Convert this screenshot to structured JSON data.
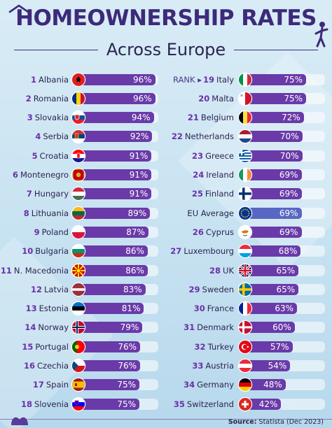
{
  "title": "HOMEOWNERSHIP RATES",
  "subtitle": "Across Europe",
  "rank_marker": "RANK ▸",
  "footer": {
    "source_label": "Source:",
    "source_text": "Statista (Dec 2023)"
  },
  "colors": {
    "bar": "#6a3aa8",
    "eu_bar": "#5867c2",
    "title": "#3d2a7a",
    "rank": "#6b2fa8"
  },
  "chart_data": {
    "type": "bar",
    "title": "HOMEOWNERSHIP RATES",
    "subtitle": "Across Europe",
    "unit": "%",
    "xlim": [
      0,
      100
    ],
    "rows": [
      {
        "rank": "1",
        "country": "Albania",
        "value": 96,
        "label": "96%",
        "flag": "albania-flag-icon"
      },
      {
        "rank": "2",
        "country": "Romania",
        "value": 96,
        "label": "96%",
        "flag": "romania-flag-icon"
      },
      {
        "rank": "3",
        "country": "Slovakia",
        "value": 94,
        "label": "94%",
        "flag": "slovakia-flag-icon"
      },
      {
        "rank": "4",
        "country": "Serbia",
        "value": 92,
        "label": "92%",
        "flag": "serbia-flag-icon"
      },
      {
        "rank": "5",
        "country": "Croatia",
        "value": 91,
        "label": "91%",
        "flag": "croatia-flag-icon"
      },
      {
        "rank": "6",
        "country": "Montenegro",
        "value": 91,
        "label": "91%",
        "flag": "montenegro-flag-icon"
      },
      {
        "rank": "7",
        "country": "Hungary",
        "value": 91,
        "label": "91%",
        "flag": "hungary-flag-icon"
      },
      {
        "rank": "8",
        "country": "Lithuania",
        "value": 89,
        "label": "89%",
        "flag": "lithuania-flag-icon"
      },
      {
        "rank": "9",
        "country": "Poland",
        "value": 87,
        "label": "87%",
        "flag": "poland-flag-icon"
      },
      {
        "rank": "10",
        "country": "Bulgaria",
        "value": 86,
        "label": "86%",
        "flag": "bulgaria-flag-icon"
      },
      {
        "rank": "11",
        "country": "N. Macedonia",
        "value": 86,
        "label": "86%",
        "flag": "north-macedonia-flag-icon"
      },
      {
        "rank": "12",
        "country": "Latvia",
        "value": 83,
        "label": "83%",
        "flag": "latvia-flag-icon"
      },
      {
        "rank": "13",
        "country": "Estonia",
        "value": 81,
        "label": "81%",
        "flag": "estonia-flag-icon"
      },
      {
        "rank": "14",
        "country": "Norway",
        "value": 79,
        "label": "79%",
        "flag": "norway-flag-icon"
      },
      {
        "rank": "15",
        "country": "Portugal",
        "value": 76,
        "label": "76%",
        "flag": "portugal-flag-icon"
      },
      {
        "rank": "16",
        "country": "Czechia",
        "value": 76,
        "label": "76%",
        "flag": "czechia-flag-icon"
      },
      {
        "rank": "17",
        "country": "Spain",
        "value": 75,
        "label": "75%",
        "flag": "spain-flag-icon"
      },
      {
        "rank": "18",
        "country": "Slovenia",
        "value": 75,
        "label": "75%",
        "flag": "slovenia-flag-icon"
      },
      {
        "rank": "19",
        "country": "Italy",
        "value": 75,
        "label": "75%",
        "flag": "italy-flag-icon"
      },
      {
        "rank": "20",
        "country": "Malta",
        "value": 75,
        "label": "75%",
        "flag": "malta-flag-icon"
      },
      {
        "rank": "21",
        "country": "Belgium",
        "value": 72,
        "label": "72%",
        "flag": "belgium-flag-icon"
      },
      {
        "rank": "22",
        "country": "Netherlands",
        "value": 70,
        "label": "70%",
        "flag": "netherlands-flag-icon"
      },
      {
        "rank": "23",
        "country": "Greece",
        "value": 70,
        "label": "70%",
        "flag": "greece-flag-icon"
      },
      {
        "rank": "24",
        "country": "Ireland",
        "value": 69,
        "label": "69%",
        "flag": "ireland-flag-icon"
      },
      {
        "rank": "25",
        "country": "Finland",
        "value": 69,
        "label": "69%",
        "flag": "finland-flag-icon"
      },
      {
        "rank": "",
        "country": "EU Average",
        "value": 69,
        "label": "69%",
        "flag": "eu-flag-icon",
        "highlight": true
      },
      {
        "rank": "26",
        "country": "Cyprus",
        "value": 69,
        "label": "69%",
        "flag": "cyprus-flag-icon"
      },
      {
        "rank": "27",
        "country": "Luxembourg",
        "value": 68,
        "label": "68%",
        "flag": "luxembourg-flag-icon"
      },
      {
        "rank": "28",
        "country": "UK",
        "value": 65,
        "label": "65%",
        "flag": "uk-flag-icon"
      },
      {
        "rank": "29",
        "country": "Sweden",
        "value": 65,
        "label": "65%",
        "flag": "sweden-flag-icon"
      },
      {
        "rank": "30",
        "country": "France",
        "value": 63,
        "label": "63%",
        "flag": "france-flag-icon"
      },
      {
        "rank": "31",
        "country": "Denmark",
        "value": 60,
        "label": "60%",
        "flag": "denmark-flag-icon"
      },
      {
        "rank": "32",
        "country": "Turkey",
        "value": 57,
        "label": "57%",
        "flag": "turkey-flag-icon"
      },
      {
        "rank": "33",
        "country": "Austria",
        "value": 54,
        "label": "54%",
        "flag": "austria-flag-icon"
      },
      {
        "rank": "34",
        "country": "Germany",
        "value": 48,
        "label": "48%",
        "flag": "germany-flag-icon"
      },
      {
        "rank": "35",
        "country": "Switzerland",
        "value": 42,
        "label": "42%",
        "flag": "switzerland-flag-icon"
      }
    ]
  }
}
